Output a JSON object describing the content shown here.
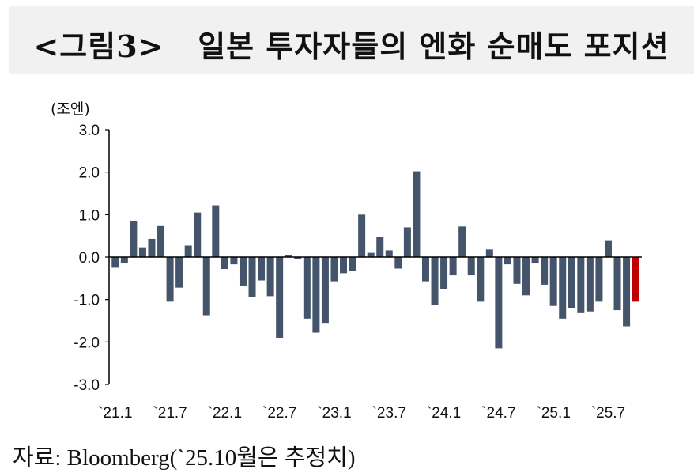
{
  "title": "<그림3>   일본 투자자들의 엔화 순매도 포지션",
  "source": "자료: Bloomberg(`25.10월은 추정치)",
  "colors": {
    "bar": "#44546a",
    "highlight": "#c00000",
    "axis": "#000000"
  },
  "chart_data": {
    "type": "bar",
    "title": "<그림3>   일본 투자자들의 엔화 순매도 포지션",
    "xlabel": "",
    "ylabel": "(조엔)",
    "ylim": [
      -3.0,
      3.0
    ],
    "yticks": [
      "3.0",
      "2.0",
      "1.0",
      "0.0",
      "-1.0",
      "-2.0",
      "-3.0"
    ],
    "ytick_values": [
      3,
      2,
      1,
      0,
      -1,
      -2,
      -3
    ],
    "xtick_labels": [
      "`21.1",
      "`21.7",
      "`22.1",
      "`22.7",
      "`23.1",
      "`23.7",
      "`24.1",
      "`24.7",
      "`25.1",
      "`25.7"
    ],
    "xtick_indices": [
      0,
      6,
      12,
      18,
      24,
      30,
      36,
      42,
      48,
      54
    ],
    "categories": [
      "2021-01",
      "2021-02",
      "2021-03",
      "2021-04",
      "2021-05",
      "2021-06",
      "2021-07",
      "2021-08",
      "2021-09",
      "2021-10",
      "2021-11",
      "2021-12",
      "2022-01",
      "2022-02",
      "2022-03",
      "2022-04",
      "2022-05",
      "2022-06",
      "2022-07",
      "2022-08",
      "2022-09",
      "2022-10",
      "2022-11",
      "2022-12",
      "2023-01",
      "2023-02",
      "2023-03",
      "2023-04",
      "2023-05",
      "2023-06",
      "2023-07",
      "2023-08",
      "2023-09",
      "2023-10",
      "2023-11",
      "2023-12",
      "2024-01",
      "2024-02",
      "2024-03",
      "2024-04",
      "2024-05",
      "2024-06",
      "2024-07",
      "2024-08",
      "2024-09",
      "2024-10",
      "2024-11",
      "2024-12",
      "2025-01",
      "2025-02",
      "2025-03",
      "2025-04",
      "2025-05",
      "2025-06",
      "2025-07",
      "2025-08",
      "2025-09",
      "2025-10"
    ],
    "values": [
      -0.25,
      -0.15,
      0.85,
      0.23,
      0.43,
      0.73,
      -1.05,
      -0.72,
      0.27,
      1.05,
      -1.37,
      1.22,
      -0.28,
      -0.17,
      -0.67,
      -0.95,
      -0.55,
      -0.92,
      -1.9,
      0.05,
      -0.05,
      -1.45,
      -1.78,
      -1.55,
      -0.57,
      -0.38,
      -0.32,
      1.0,
      0.1,
      0.48,
      0.16,
      -0.27,
      0.7,
      2.02,
      -0.57,
      -1.12,
      -0.75,
      -0.43,
      0.72,
      -0.43,
      -1.05,
      0.18,
      -2.15,
      -0.17,
      -0.63,
      -0.9,
      -0.15,
      -0.65,
      -1.15,
      -1.45,
      -1.2,
      -1.32,
      -1.28,
      -1.05,
      0.38,
      -1.25,
      -1.63,
      -1.05
    ],
    "highlight_index": 57,
    "grid": false,
    "legend": "none"
  }
}
